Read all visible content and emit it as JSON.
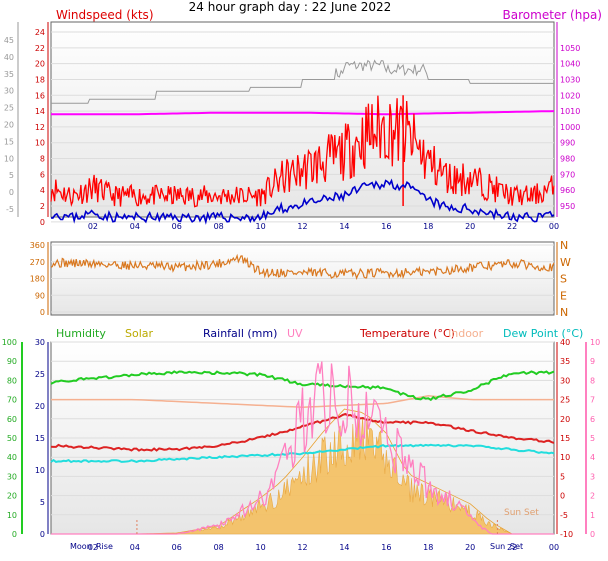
{
  "title": "24 hour graph day : 22 June 2022",
  "x_ticks": [
    "02",
    "04",
    "06",
    "08",
    "10",
    "12",
    "14",
    "16",
    "18",
    "20",
    "22",
    "00"
  ],
  "colors": {
    "windspeed": "#ff0000",
    "gust": "#ff0000",
    "avg_wind": "#0000cc",
    "barometer": "#ff00ff",
    "baro_label": "#cc00cc",
    "winddir": "#d97820",
    "humidity": "#22cc22",
    "humidity_label": "#22aa22",
    "solar": "#f5c060",
    "solar_label": "#bbaa00",
    "rainfall": "#000088",
    "uv": "#ff80c0",
    "temperature": "#dd2222",
    "temp_label": "#cc0000",
    "indoor": "#f5b090",
    "dewpoint": "#22dddd",
    "dew_label": "#00bbbb",
    "grey_trace": "#999999"
  },
  "chart_data": [
    {
      "type": "line",
      "panel": "wind_baro",
      "left_label": "Windspeed (kts)",
      "right_label": "Barometer (hpa)",
      "left_axis_outer_ticks": [
        "45",
        "40",
        "35",
        "30",
        "25",
        "20",
        "15",
        "10",
        "5",
        "0",
        "-5"
      ],
      "left_axis_ticks": [
        "24",
        "22",
        "20",
        "18",
        "16",
        "14",
        "12",
        "10",
        "8",
        "6",
        "4",
        "2",
        "0"
      ],
      "right_axis_ticks": [
        "1050",
        "1040",
        "1030",
        "1020",
        "1010",
        "1000",
        "990",
        "980",
        "970",
        "960",
        "950"
      ],
      "x_ticks": [
        "02",
        "04",
        "06",
        "08",
        "10",
        "12",
        "14",
        "16",
        "18",
        "20",
        "22",
        "00"
      ],
      "ylim": [
        -1,
        25
      ],
      "series": [
        {
          "name": "Windspeed (kts)",
          "x": [
            0,
            1,
            2,
            3,
            4,
            5,
            6,
            7,
            8,
            9,
            10,
            11,
            12,
            13,
            14,
            15,
            16,
            17,
            18,
            19,
            20,
            21,
            22,
            23,
            24
          ],
          "values": [
            4,
            3,
            4,
            3,
            3,
            3,
            3,
            3,
            3,
            3,
            3,
            5,
            6,
            7,
            8,
            10,
            11,
            10,
            7,
            5,
            5,
            4,
            3,
            3,
            4
          ]
        },
        {
          "name": "Barometer (hpa)",
          "x": [
            0,
            4,
            8,
            12,
            16,
            20,
            24
          ],
          "values": [
            1008,
            1008,
            1009,
            1009,
            1008,
            1009,
            1010
          ]
        }
      ]
    },
    {
      "type": "scatter",
      "panel": "wind_direction",
      "left_axis_ticks": [
        "360",
        "270",
        "180",
        "90",
        "0"
      ],
      "right_axis_ticks": [
        "N",
        "W",
        "S",
        "E",
        "N"
      ],
      "ylim": [
        0,
        360
      ],
      "series": [
        {
          "name": "Wind direction",
          "x": [
            0,
            2,
            4,
            6,
            8,
            9,
            10,
            12,
            14,
            16,
            18,
            20,
            22,
            24
          ],
          "values": [
            265,
            260,
            250,
            240,
            260,
            290,
            215,
            210,
            205,
            210,
            215,
            240,
            260,
            240
          ]
        }
      ]
    },
    {
      "type": "line",
      "panel": "temp_humidity_solar",
      "labels": [
        "Humidity",
        "Solar",
        "Rainfall (mm)",
        "UV",
        "Temperature (°C)",
        "Indoor",
        "Dew Point (°C)"
      ],
      "left_axis_outer_ticks": [
        "100",
        "90",
        "80",
        "70",
        "60",
        "50",
        "40",
        "30",
        "20",
        "10",
        "0"
      ],
      "left_axis_ticks": [
        "30",
        "25",
        "20",
        "15",
        "10",
        "5",
        "0"
      ],
      "right_axis_ticks": [
        "40",
        "35",
        "30",
        "25",
        "20",
        "15",
        "10",
        "5",
        "0",
        "-5",
        "-10"
      ],
      "right_outer_ticks": [
        "10",
        "9",
        "8",
        "7",
        "6",
        "5",
        "4",
        "3",
        "2",
        "1",
        "0"
      ],
      "bottom_labels": [
        "Moon",
        "Rise",
        "Sun",
        "Set"
      ],
      "sun_set_label": "Sun Set",
      "series": [
        {
          "name": "Humidity",
          "x": [
            0,
            2,
            4,
            6,
            8,
            10,
            12,
            14,
            16,
            17,
            18,
            20,
            22,
            24
          ],
          "values": [
            79,
            81,
            83,
            84,
            84,
            83,
            78,
            77,
            76,
            72,
            70,
            75,
            84,
            84
          ]
        },
        {
          "name": "Temperature (°C)",
          "x": [
            0,
            2,
            4,
            6,
            8,
            10,
            12,
            14,
            16,
            18,
            20,
            22,
            24
          ],
          "values": [
            13,
            12.5,
            12,
            12,
            13,
            15,
            18,
            21,
            19,
            19,
            17,
            15,
            14
          ]
        },
        {
          "name": "Indoor",
          "x": [
            0,
            4,
            8,
            12,
            16,
            18,
            20,
            24
          ],
          "values": [
            25,
            25,
            24,
            23,
            24,
            26,
            25,
            25
          ]
        },
        {
          "name": "Dew Point (°C)",
          "x": [
            0,
            4,
            8,
            12,
            16,
            20,
            24
          ],
          "values": [
            9,
            9,
            10,
            11,
            13,
            13,
            11
          ]
        },
        {
          "name": "Solar",
          "x": [
            0,
            4,
            6,
            8,
            9,
            10,
            11,
            12,
            13,
            14,
            15,
            16,
            17,
            18,
            19,
            20,
            21,
            22,
            24
          ],
          "values": [
            0,
            0,
            5,
            40,
            110,
            180,
            260,
            380,
            510,
            620,
            600,
            500,
            300,
            250,
            200,
            150,
            60,
            0,
            0
          ]
        },
        {
          "name": "UV",
          "x": [
            0,
            6,
            8,
            10,
            11,
            12,
            13,
            14,
            15,
            16,
            17,
            18,
            19,
            20,
            21,
            24
          ],
          "values": [
            0,
            0,
            0.5,
            2,
            4,
            7,
            8,
            8,
            7,
            6,
            4,
            3,
            2,
            1,
            0,
            0
          ]
        }
      ]
    }
  ]
}
